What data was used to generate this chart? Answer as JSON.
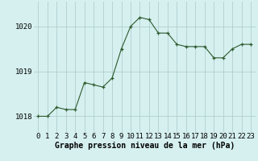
{
  "x": [
    0,
    1,
    2,
    3,
    4,
    5,
    6,
    7,
    8,
    9,
    10,
    11,
    12,
    13,
    14,
    15,
    16,
    17,
    18,
    19,
    20,
    21,
    22,
    23
  ],
  "y": [
    1018.0,
    1018.0,
    1018.2,
    1018.15,
    1018.15,
    1018.75,
    1018.7,
    1018.65,
    1018.85,
    1019.5,
    1020.0,
    1020.2,
    1020.15,
    1019.85,
    1019.85,
    1019.6,
    1019.55,
    1019.55,
    1019.55,
    1019.3,
    1019.3,
    1019.5,
    1019.6,
    1019.6
  ],
  "line_color": "#2d5a2d",
  "marker_color": "#2d5a2d",
  "bg_color": "#d6f0f0",
  "grid_color": "#b0cece",
  "xlabel": "Graphe pression niveau de la mer (hPa)",
  "yticks": [
    1018,
    1019,
    1020
  ],
  "xlim": [
    -0.5,
    23.5
  ],
  "ylim": [
    1017.65,
    1020.55
  ],
  "xlabel_fontsize": 7,
  "tick_fontsize": 6.5
}
